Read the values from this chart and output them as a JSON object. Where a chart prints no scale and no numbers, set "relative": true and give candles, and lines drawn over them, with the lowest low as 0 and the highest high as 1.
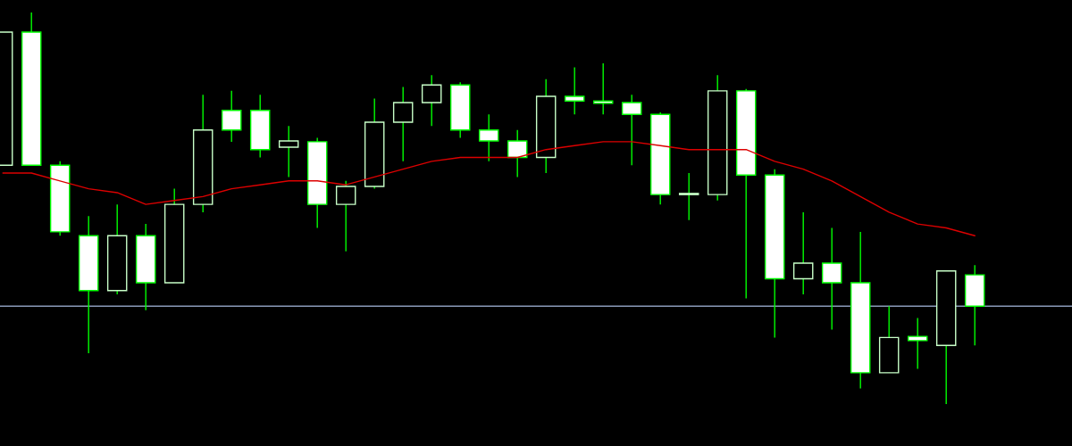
{
  "chart_data": {
    "type": "candlestick",
    "relative": true,
    "categories": [
      null,
      null,
      null,
      null,
      null,
      null,
      null,
      null,
      null,
      null,
      null,
      null,
      null,
      null,
      null,
      null,
      null,
      null,
      null,
      null,
      null,
      null,
      null,
      null,
      null,
      null,
      null,
      null,
      null,
      null,
      null,
      null,
      null,
      null,
      null
    ],
    "ohlc": [
      [
        0.61,
        0.95,
        0.61,
        0.95
      ],
      [
        0.95,
        1,
        0.61,
        0.61
      ],
      [
        0.61,
        0.62,
        0.43,
        0.44
      ],
      [
        0.43,
        0.48,
        0.13,
        0.29
      ],
      [
        0.29,
        0.51,
        0.28,
        0.43
      ],
      [
        0.43,
        0.46,
        0.24,
        0.31
      ],
      [
        0.31,
        0.55,
        0.31,
        0.51
      ],
      [
        0.51,
        0.79,
        0.49,
        0.7
      ],
      [
        0.75,
        0.8,
        0.67,
        0.7
      ],
      [
        0.75,
        0.79,
        0.63,
        0.65
      ],
      [
        0.656,
        0.71,
        0.58,
        0.672
      ],
      [
        0.67,
        0.68,
        0.45,
        0.51
      ],
      [
        0.51,
        0.57,
        0.39,
        0.556
      ],
      [
        0.556,
        0.78,
        0.55,
        0.72
      ],
      [
        0.72,
        0.81,
        0.62,
        0.77
      ],
      [
        0.77,
        0.84,
        0.71,
        0.815
      ],
      [
        0.815,
        0.822,
        0.68,
        0.7
      ],
      [
        0.7,
        0.74,
        0.62,
        0.672
      ],
      [
        0.672,
        0.7,
        0.58,
        0.63
      ],
      [
        0.63,
        0.83,
        0.59,
        0.786
      ],
      [
        0.786,
        0.86,
        0.74,
        0.774
      ],
      [
        0.774,
        0.87,
        0.74,
        0.768
      ],
      [
        0.77,
        0.79,
        0.61,
        0.74
      ],
      [
        0.74,
        0.745,
        0.51,
        0.535
      ],
      [
        0.535,
        0.59,
        0.47,
        0.535
      ],
      [
        0.535,
        0.84,
        0.52,
        0.8
      ],
      [
        0.8,
        0.805,
        0.27,
        0.585
      ],
      [
        0.585,
        0.6,
        0.17,
        0.32
      ],
      [
        0.32,
        0.49,
        0.28,
        0.36
      ],
      [
        0.36,
        0.45,
        0.19,
        0.31
      ],
      [
        0.31,
        0.44,
        0.04,
        0.08
      ],
      [
        0.08,
        0.25,
        0.08,
        0.17
      ],
      [
        0.173,
        0.22,
        0.09,
        0.162
      ],
      [
        0.15,
        0.34,
        0,
        0.34
      ],
      [
        0.33,
        0.355,
        0.15,
        0.25
      ]
    ],
    "series": [
      {
        "type": "line",
        "color": "#dd0000",
        "values": [
          0.59,
          0.59,
          0.57,
          0.55,
          0.54,
          0.51,
          0.52,
          0.53,
          0.55,
          0.56,
          0.57,
          0.57,
          0.56,
          0.58,
          0.6,
          0.62,
          0.63,
          0.63,
          0.63,
          0.65,
          0.66,
          0.67,
          0.67,
          0.66,
          0.65,
          0.65,
          0.65,
          0.62,
          0.6,
          0.57,
          0.53,
          0.49,
          0.46,
          0.45,
          0.43
        ]
      }
    ],
    "ref_lines": [
      {
        "axis": "y",
        "value": 0.25,
        "color": "#8a9ab8"
      }
    ]
  }
}
